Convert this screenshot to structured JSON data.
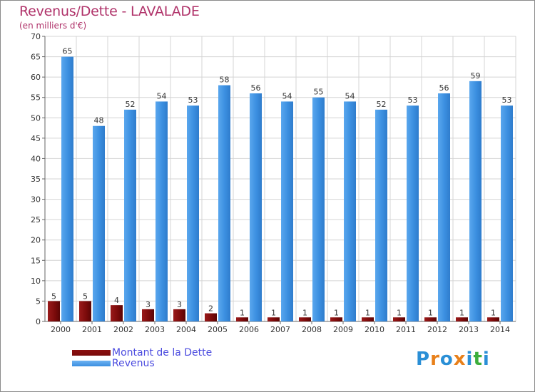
{
  "title": "Revenus/Dette - LAVALADE",
  "subtitle": "(en milliers d'€)",
  "brand": {
    "logo_text": "Proxiti"
  },
  "colors": {
    "debt": "#7a0a0a",
    "revenue": "#3b8fe0",
    "title": "#b0336a",
    "legend_text": "#4a4adf"
  },
  "chart_data": {
    "type": "bar",
    "categories": [
      "2000",
      "2001",
      "2002",
      "2003",
      "2004",
      "2005",
      "2006",
      "2007",
      "2008",
      "2009",
      "2010",
      "2011",
      "2012",
      "2013",
      "2014"
    ],
    "series": [
      {
        "name": "Montant de la Dette",
        "values": [
          5,
          5,
          4,
          3,
          3,
          2,
          1,
          1,
          1,
          1,
          1,
          1,
          1,
          1,
          1
        ]
      },
      {
        "name": "Revenus",
        "values": [
          65,
          48,
          52,
          54,
          53,
          58,
          56,
          54,
          55,
          54,
          52,
          53,
          56,
          59,
          53
        ]
      }
    ],
    "title": "Revenus/Dette - LAVALADE",
    "subtitle": "(en milliers d'€)",
    "ylim": [
      0,
      70
    ],
    "yticks": [
      0,
      5,
      10,
      15,
      20,
      25,
      30,
      35,
      40,
      45,
      50,
      55,
      60,
      65,
      70
    ],
    "grid": true,
    "legend_position": "bottom-left"
  }
}
